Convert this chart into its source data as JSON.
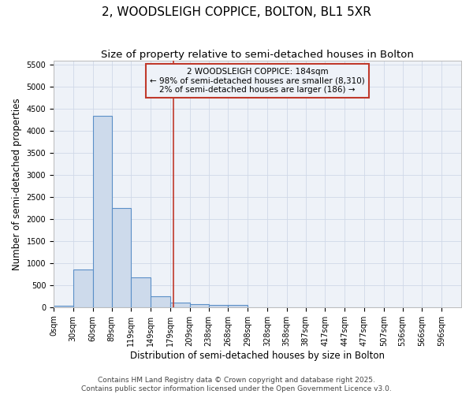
{
  "title": "2, WOODSLEIGH COPPICE, BOLTON, BL1 5XR",
  "subtitle": "Size of property relative to semi-detached houses in Bolton",
  "xlabel": "Distribution of semi-detached houses by size in Bolton",
  "ylabel": "Number of semi-detached properties",
  "bar_left_edges": [
    0,
    30,
    60,
    89,
    119,
    149,
    179,
    209,
    238,
    268,
    298,
    328,
    358,
    387,
    417,
    447,
    477,
    507,
    536,
    566
  ],
  "bar_heights": [
    30,
    850,
    4350,
    2250,
    680,
    250,
    110,
    60,
    50,
    50,
    0,
    0,
    0,
    0,
    0,
    0,
    0,
    0,
    0,
    0
  ],
  "bar_widths": [
    30,
    30,
    29,
    30,
    30,
    30,
    30,
    29,
    30,
    30,
    30,
    30,
    29,
    30,
    30,
    30,
    30,
    29,
    30,
    30
  ],
  "bar_color": "#cddaeb",
  "bar_edgecolor": "#5b8fc7",
  "bar_linewidth": 0.8,
  "redline_x": 184,
  "redline_color": "#c0392b",
  "annotation_line1": "2 WOODSLEIGH COPPICE: 184sqm",
  "annotation_line2": "← 98% of semi-detached houses are smaller (8,310)",
  "annotation_line3": "2% of semi-detached houses are larger (186) →",
  "annotation_box_color": "#c0392b",
  "ylim": [
    0,
    5600
  ],
  "yticks": [
    0,
    500,
    1000,
    1500,
    2000,
    2500,
    3000,
    3500,
    4000,
    4500,
    5000,
    5500
  ],
  "xtick_labels": [
    "0sqm",
    "30sqm",
    "60sqm",
    "89sqm",
    "119sqm",
    "149sqm",
    "179sqm",
    "209sqm",
    "238sqm",
    "268sqm",
    "298sqm",
    "328sqm",
    "358sqm",
    "387sqm",
    "417sqm",
    "447sqm",
    "477sqm",
    "507sqm",
    "536sqm",
    "566sqm",
    "596sqm"
  ],
  "xtick_positions": [
    0,
    30,
    60,
    89,
    119,
    149,
    179,
    209,
    238,
    268,
    298,
    328,
    358,
    387,
    417,
    447,
    477,
    507,
    536,
    566,
    596
  ],
  "grid_color": "#d0d8e8",
  "plot_bg_color": "#eef2f8",
  "fig_bg_color": "#ffffff",
  "footer_line1": "Contains HM Land Registry data © Crown copyright and database right 2025.",
  "footer_line2": "Contains public sector information licensed under the Open Government Licence v3.0.",
  "title_fontsize": 11,
  "subtitle_fontsize": 9.5,
  "axis_label_fontsize": 8.5,
  "tick_fontsize": 7,
  "annotation_fontsize": 7.5,
  "footer_fontsize": 6.5
}
